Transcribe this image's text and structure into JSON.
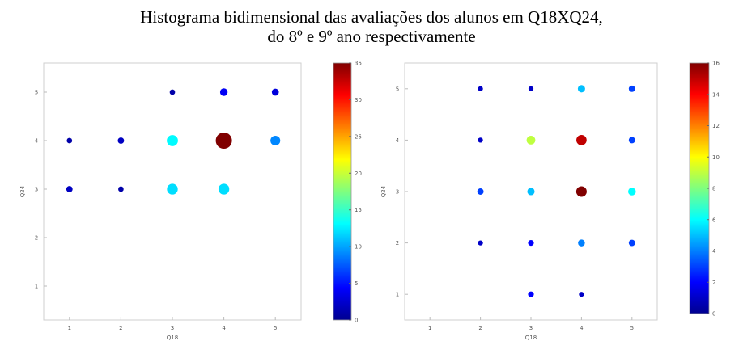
{
  "title": {
    "line1": "Histograma bidimensional das avaliações dos alunos em Q18XQ24,",
    "line2": "do 8º e 9º ano respectivamente"
  },
  "chart_data": [
    {
      "type": "scatter",
      "xlabel": "Q18",
      "ylabel": "Q24",
      "xlim": [
        0.5,
        5.5
      ],
      "ylim": [
        0.3,
        5.6
      ],
      "xticks": [
        1,
        2,
        3,
        4,
        5
      ],
      "yticks": [
        1,
        2,
        3,
        4,
        5
      ],
      "colorbar": {
        "range": [
          0,
          35
        ],
        "ticks": [
          0,
          5,
          10,
          15,
          20,
          25,
          30,
          35
        ],
        "colormap": "jet"
      },
      "grid": false,
      "points": [
        {
          "x": 3,
          "y": 5,
          "count": 1
        },
        {
          "x": 4,
          "y": 5,
          "count": 4
        },
        {
          "x": 5,
          "y": 5,
          "count": 3
        },
        {
          "x": 1,
          "y": 4,
          "count": 1
        },
        {
          "x": 2,
          "y": 4,
          "count": 2
        },
        {
          "x": 3,
          "y": 4,
          "count": 13
        },
        {
          "x": 4,
          "y": 4,
          "count": 35
        },
        {
          "x": 5,
          "y": 4,
          "count": 9
        },
        {
          "x": 1,
          "y": 3,
          "count": 2
        },
        {
          "x": 2,
          "y": 3,
          "count": 1
        },
        {
          "x": 3,
          "y": 3,
          "count": 12
        },
        {
          "x": 4,
          "y": 3,
          "count": 12
        }
      ]
    },
    {
      "type": "scatter",
      "xlabel": "Q18",
      "ylabel": "Q24",
      "xlim": [
        0.5,
        5.5
      ],
      "ylim": [
        0.5,
        5.5
      ],
      "xticks": [
        1,
        2,
        3,
        4,
        5
      ],
      "yticks": [
        1,
        2,
        3,
        4,
        5
      ],
      "colorbar": {
        "range": [
          0,
          16
        ],
        "ticks": [
          0,
          2,
          4,
          6,
          8,
          10,
          12,
          14,
          16
        ],
        "colormap": "jet"
      },
      "grid": false,
      "points": [
        {
          "x": 2,
          "y": 5,
          "count": 1
        },
        {
          "x": 3,
          "y": 5,
          "count": 1
        },
        {
          "x": 4,
          "y": 5,
          "count": 5
        },
        {
          "x": 5,
          "y": 5,
          "count": 3
        },
        {
          "x": 2,
          "y": 4,
          "count": 1
        },
        {
          "x": 3,
          "y": 4,
          "count": 9
        },
        {
          "x": 4,
          "y": 4,
          "count": 15
        },
        {
          "x": 5,
          "y": 4,
          "count": 3
        },
        {
          "x": 2,
          "y": 3,
          "count": 3
        },
        {
          "x": 3,
          "y": 3,
          "count": 5
        },
        {
          "x": 4,
          "y": 3,
          "count": 16
        },
        {
          "x": 5,
          "y": 3,
          "count": 6
        },
        {
          "x": 2,
          "y": 2,
          "count": 1
        },
        {
          "x": 3,
          "y": 2,
          "count": 2
        },
        {
          "x": 4,
          "y": 2,
          "count": 4
        },
        {
          "x": 5,
          "y": 2,
          "count": 3
        },
        {
          "x": 3,
          "y": 1,
          "count": 2
        },
        {
          "x": 4,
          "y": 1,
          "count": 1
        }
      ]
    }
  ]
}
